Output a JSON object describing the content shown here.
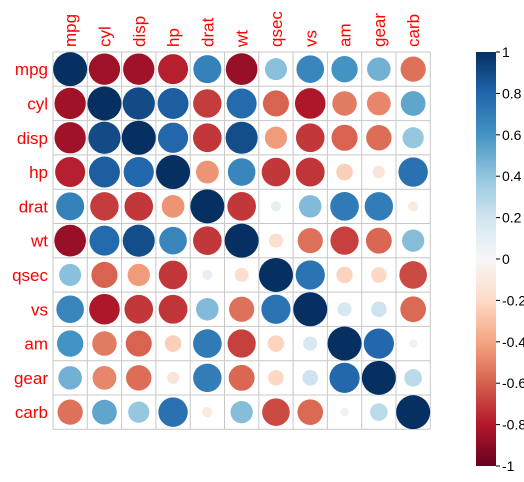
{
  "chart_data": {
    "type": "heatmap",
    "labels": [
      "mpg",
      "cyl",
      "disp",
      "hp",
      "drat",
      "wt",
      "qsec",
      "vs",
      "am",
      "gear",
      "carb"
    ],
    "matrix": [
      [
        1.0,
        -0.85,
        -0.85,
        -0.78,
        0.68,
        -0.87,
        0.42,
        0.66,
        0.6,
        0.48,
        -0.55
      ],
      [
        -0.85,
        1.0,
        0.9,
        0.83,
        -0.7,
        0.78,
        -0.59,
        -0.81,
        -0.52,
        -0.49,
        0.53
      ],
      [
        -0.85,
        0.9,
        1.0,
        0.79,
        -0.71,
        0.89,
        -0.43,
        -0.71,
        -0.59,
        -0.56,
        0.39
      ],
      [
        -0.78,
        0.83,
        0.79,
        1.0,
        -0.45,
        0.66,
        -0.71,
        -0.72,
        -0.24,
        -0.13,
        0.75
      ],
      [
        0.68,
        -0.7,
        -0.71,
        -0.45,
        1.0,
        -0.71,
        0.09,
        0.44,
        0.71,
        0.7,
        -0.09
      ],
      [
        -0.87,
        0.78,
        0.89,
        0.66,
        -0.71,
        1.0,
        -0.17,
        -0.55,
        -0.69,
        -0.58,
        0.43
      ],
      [
        0.42,
        -0.59,
        -0.43,
        -0.71,
        0.09,
        -0.17,
        1.0,
        0.74,
        -0.23,
        -0.21,
        -0.66
      ],
      [
        0.66,
        -0.81,
        -0.71,
        -0.72,
        0.44,
        -0.55,
        0.74,
        1.0,
        0.17,
        0.21,
        -0.57
      ],
      [
        0.6,
        -0.52,
        -0.59,
        -0.24,
        0.71,
        -0.69,
        -0.23,
        0.17,
        1.0,
        0.79,
        0.06
      ],
      [
        0.48,
        -0.49,
        -0.56,
        -0.13,
        0.7,
        -0.58,
        -0.21,
        0.21,
        0.79,
        1.0,
        0.27
      ],
      [
        -0.55,
        0.53,
        0.39,
        0.75,
        -0.09,
        0.43,
        -0.66,
        -0.57,
        0.06,
        0.27,
        1.0
      ]
    ],
    "colorbar": {
      "range": [
        -1,
        1
      ],
      "ticks": [
        "1",
        "0.8",
        "0.6",
        "0.4",
        "0.2",
        "0",
        "-0.2",
        "-0.4",
        "-0.6",
        "-0.8",
        "-1"
      ]
    },
    "grid": true,
    "label_color": "#ff0000",
    "grid_color": "#c8c8c8",
    "colors": {
      "negative": "#67001f",
      "mid": "#f7f7f7",
      "positive": "#053061"
    }
  }
}
